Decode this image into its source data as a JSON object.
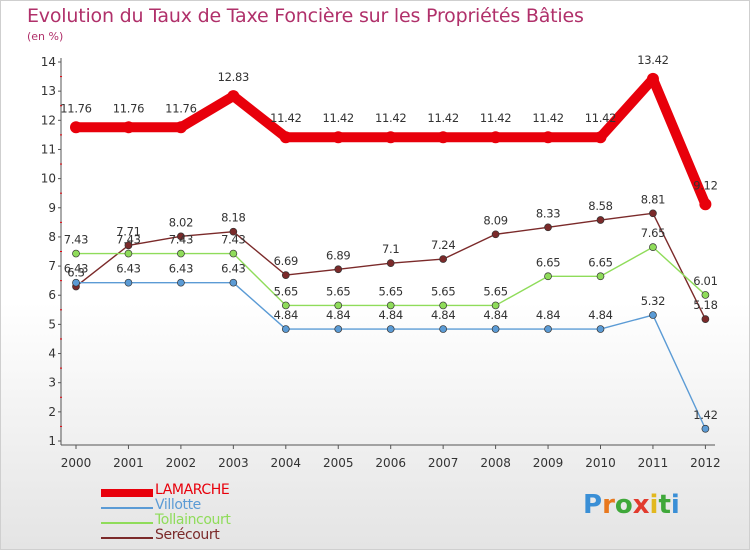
{
  "title": "Evolution du Taux de Taxe Foncière sur les Propriétés Bâties",
  "unit_label": "(en %)",
  "brand": {
    "letters": [
      "P",
      "r",
      "o",
      "x",
      "i",
      "t",
      "i"
    ],
    "colors": [
      "#3a8fd6",
      "#e8781e",
      "#3fa83a",
      "#e23b2e",
      "#e2b81e",
      "#3fa83a",
      "#3a8fd6"
    ]
  },
  "chart_data": {
    "type": "line",
    "title": "Evolution du Taux de Taxe Foncière sur les Propriétés Bâties",
    "ylabel": "(en %)",
    "xlabel": "",
    "ylim": [
      1,
      14
    ],
    "yticks": [
      "1",
      "2",
      "3",
      "4",
      "5",
      "6",
      "7",
      "8",
      "9",
      "10",
      "11",
      "12",
      "13",
      "14"
    ],
    "categories": [
      "2000",
      "2001",
      "2002",
      "2003",
      "2004",
      "2005",
      "2006",
      "2007",
      "2008",
      "2009",
      "2010",
      "2011",
      "2012"
    ],
    "series": [
      {
        "name": "LAMARCHE",
        "color": "#e8000b",
        "values": [
          11.76,
          11.76,
          11.76,
          12.83,
          11.42,
          11.42,
          11.42,
          11.42,
          11.42,
          11.42,
          11.42,
          13.42,
          9.12
        ],
        "labels": [
          "11.76",
          "11.76",
          "11.76",
          "12.83",
          "11.42",
          "11.42",
          "11.42",
          "11.42",
          "11.42",
          "11.42",
          "11.42",
          "13.42",
          "9.12"
        ]
      },
      {
        "name": "Villotte",
        "color": "#5b9bd5",
        "values": [
          6.43,
          6.43,
          6.43,
          6.43,
          4.84,
          4.84,
          4.84,
          4.84,
          4.84,
          4.84,
          4.84,
          5.32,
          1.42
        ],
        "labels": [
          "6.43",
          "6.43",
          "6.43",
          "6.43",
          "4.84",
          "4.84",
          "4.84",
          "4.84",
          "4.84",
          "4.84",
          "4.84",
          "5.32",
          "1.42"
        ]
      },
      {
        "name": "Tollaincourt",
        "color": "#8fdc5a",
        "values": [
          7.43,
          7.43,
          7.43,
          7.43,
          5.65,
          5.65,
          5.65,
          5.65,
          5.65,
          6.65,
          6.65,
          7.65,
          6.01
        ],
        "labels": [
          "7.43",
          "7.43",
          "7.43",
          "7.43",
          "5.65",
          "5.65",
          "5.65",
          "5.65",
          "5.65",
          "6.65",
          "6.65",
          "7.65",
          "6.01"
        ]
      },
      {
        "name": "Serécourt",
        "color": "#7b2a2a",
        "values": [
          6.3,
          7.71,
          8.02,
          8.18,
          6.69,
          6.89,
          7.1,
          7.24,
          8.09,
          8.33,
          8.58,
          8.81,
          5.18
        ],
        "labels": [
          "6.3",
          "7.71",
          "8.02",
          "8.18",
          "6.69",
          "6.89",
          "7.1",
          "7.24",
          "8.09",
          "8.33",
          "8.58",
          "8.81",
          "5.18"
        ]
      }
    ]
  }
}
